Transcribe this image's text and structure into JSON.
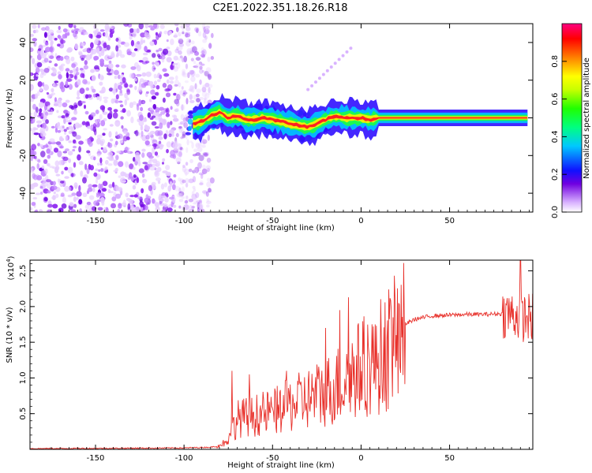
{
  "title": "C2E1.2022.351.18.26.R18",
  "chart_data": [
    {
      "type": "heatmap",
      "xlabel": "Height of straight line (km)",
      "ylabel": "Frequency (Hz)",
      "xlim": [
        -187,
        97
      ],
      "ylim": [
        -50,
        50
      ],
      "xticks": [
        -150,
        -100,
        -50,
        0,
        50
      ],
      "yticks": [
        -40,
        -20,
        0,
        20,
        40
      ],
      "colorbar": {
        "label": "Normalized spectral amplitude",
        "range": [
          0,
          1
        ],
        "ticks": [
          "0.0",
          "0.2",
          "0.4",
          "0.6",
          "0.8"
        ]
      },
      "ridge": {
        "x": [
          -95,
          -90,
          -85,
          -80,
          -75,
          -70,
          -65,
          -60,
          -55,
          -50,
          -45,
          -40,
          -35,
          -30,
          -25,
          -20,
          -15,
          -10,
          -5,
          0,
          5,
          10,
          20,
          40,
          60,
          80,
          95
        ],
        "y": [
          -3,
          -2,
          1,
          3,
          0,
          1,
          -1,
          -1,
          0,
          -1,
          -2,
          -3,
          -4,
          -5,
          -3,
          -1,
          1,
          0,
          0,
          0,
          -1,
          0,
          0,
          0,
          0,
          0,
          0
        ]
      },
      "noise_region_x": [
        -187,
        -90
      ]
    },
    {
      "type": "line",
      "xlabel": "Height of straight line (km)",
      "ylabel": "SNR (10 * v/v)",
      "scale_label": "(x10",
      "scale_exp": "4",
      "xlim": [
        -187,
        97
      ],
      "ylim": [
        0,
        2.65
      ],
      "xticks": [
        -150,
        -100,
        -50,
        0,
        50
      ],
      "yticks": [
        "0.5",
        "1.0",
        "1.5",
        "2.0",
        "2.5"
      ],
      "color": "#e8302a",
      "envelope": {
        "x": [
          -187,
          -100,
          -85,
          -80,
          -75,
          -70,
          -60,
          -50,
          -40,
          -30,
          -20,
          -10,
          -5,
          0,
          10,
          20,
          25,
          30,
          40,
          50,
          60,
          70,
          80,
          85,
          90,
          97
        ],
        "y": [
          0.01,
          0.02,
          0.03,
          0.05,
          0.15,
          0.45,
          0.5,
          0.55,
          0.65,
          0.75,
          0.85,
          1.0,
          1.1,
          1.2,
          1.35,
          1.6,
          1.75,
          1.82,
          1.87,
          1.88,
          1.89,
          1.89,
          1.9,
          1.9,
          1.85,
          1.85
        ]
      },
      "spikes": [
        {
          "x": -73,
          "y": 1.1
        },
        {
          "x": -63,
          "y": 1.05
        },
        {
          "x": -42,
          "y": 1.1
        },
        {
          "x": -20,
          "y": 1.7
        },
        {
          "x": -12,
          "y": 1.95
        },
        {
          "x": -7,
          "y": 2.13
        },
        {
          "x": 8,
          "y": 1.75
        },
        {
          "x": 18,
          "y": 1.85
        },
        {
          "x": 90,
          "y": 2.65
        }
      ]
    }
  ]
}
